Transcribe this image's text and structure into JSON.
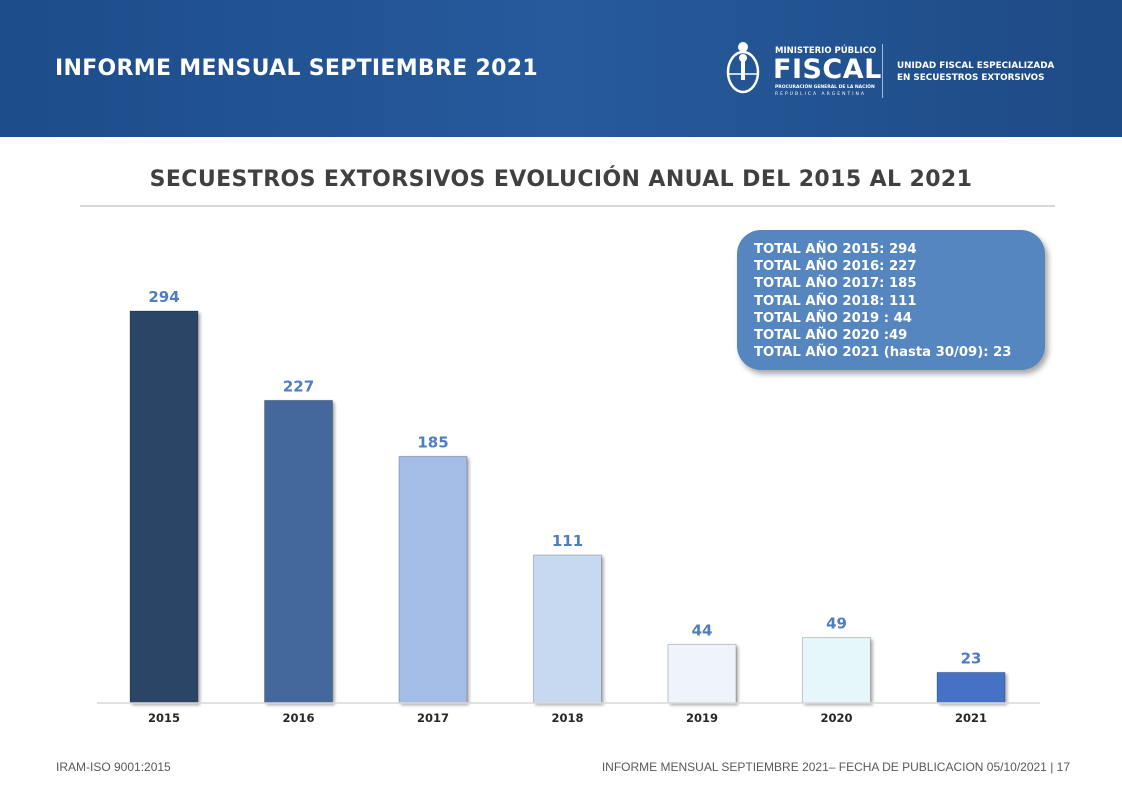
{
  "header": {
    "title": "INFORME MENSUAL SEPTIEMBRE 2021",
    "logo": {
      "line1": "MINISTERIO PÚBLICO",
      "line2": "FISCAL",
      "line3": "PROCURACIÓN GENERAL DE LA NACIÓN",
      "line4": "REPÚBLICA ARGENTINA"
    },
    "unit_line1": "UNIDAD FISCAL ESPECIALIZADA",
    "unit_line2": "EN SECUESTROS EXTORSIVOS"
  },
  "chart_data": {
    "type": "bar",
    "title": "SECUESTROS EXTORSIVOS EVOLUCIÓN ANUAL DEL 2015 AL 2021",
    "categories": [
      "2015",
      "2016",
      "2017",
      "2018",
      "2019",
      "2020",
      "2021"
    ],
    "values": [
      294,
      227,
      185,
      111,
      44,
      49,
      23
    ],
    "colors": [
      "#2c4466",
      "#44679c",
      "#a3bde6",
      "#c6d9f1",
      "#eef3fc",
      "#e6f7fc",
      "#4472c4"
    ],
    "data_label_color": "#4f7ec0",
    "ylim": [
      0,
      294
    ],
    "grid": false,
    "legend": "none"
  },
  "summary": [
    "TOTAL AÑO 2015: 294",
    "TOTAL AÑO 2016: 227",
    "TOTAL AÑO 2017: 185",
    "TOTAL AÑO 2018: 111",
    "TOTAL AÑO 2019 : 44",
    "TOTAL AÑO 2020 :49",
    "TOTAL AÑO 2021 (hasta 30/09): 23"
  ],
  "footer": {
    "left": "IRAM-ISO 9001:2015",
    "right": "INFORME MENSUAL SEPTIEMBRE 2021– FECHA DE PUBLICACION  05/10/2021 | 17"
  }
}
